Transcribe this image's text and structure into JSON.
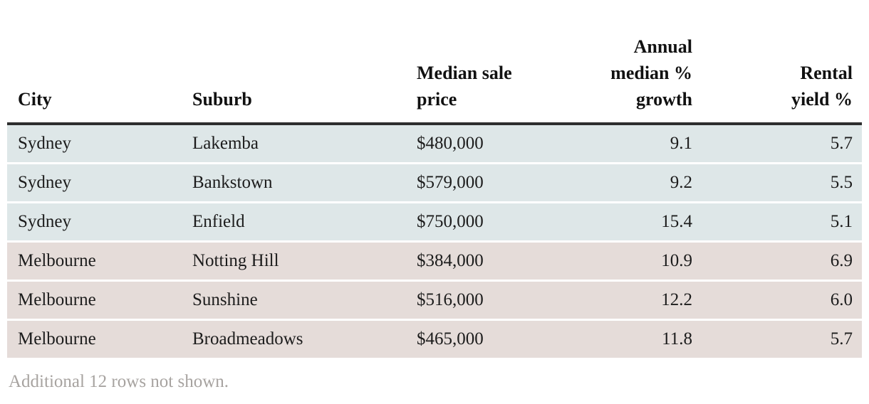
{
  "table": {
    "columns": [
      {
        "label": "City",
        "align": "left"
      },
      {
        "label": "Suburb",
        "align": "left"
      },
      {
        "label": "Median sale\nprice",
        "align": "left"
      },
      {
        "label": "Annual\nmedian %\ngrowth",
        "align": "right"
      },
      {
        "label": "Rental\nyield %",
        "align": "right"
      }
    ],
    "row_groups": {
      "Sydney": "#dee7e8",
      "Melbourne": "#e5dcd9"
    },
    "rows": [
      {
        "city": "Sydney",
        "suburb": "Lakemba",
        "median_sale_price": "$480,000",
        "annual_median_growth": "9.1",
        "rental_yield": "5.7"
      },
      {
        "city": "Sydney",
        "suburb": "Bankstown",
        "median_sale_price": "$579,000",
        "annual_median_growth": "9.2",
        "rental_yield": "5.5"
      },
      {
        "city": "Sydney",
        "suburb": "Enfield",
        "median_sale_price": "$750,000",
        "annual_median_growth": "15.4",
        "rental_yield": "5.1"
      },
      {
        "city": "Melbourne",
        "suburb": "Notting Hill",
        "median_sale_price": "$384,000",
        "annual_median_growth": "10.9",
        "rental_yield": "6.9"
      },
      {
        "city": "Melbourne",
        "suburb": "Sunshine",
        "median_sale_price": "$516,000",
        "annual_median_growth": "12.2",
        "rental_yield": "6.0"
      },
      {
        "city": "Melbourne",
        "suburb": "Broadmeadows",
        "median_sale_price": "$465,000",
        "annual_median_growth": "11.8",
        "rental_yield": "5.7"
      }
    ]
  },
  "footer": {
    "note": "Additional 12 rows not shown."
  },
  "colors": {
    "sydney_row_bg": "#dee7e8",
    "melbourne_row_bg": "#e5dcd9",
    "header_rule": "#2e2e2e",
    "footer_text": "#a7a3a0"
  },
  "chart_data": {
    "type": "table",
    "columns": [
      "City",
      "Suburb",
      "Median sale price",
      "Annual median % growth",
      "Rental yield %"
    ],
    "rows": [
      [
        "Sydney",
        "Lakemba",
        "$480,000",
        9.1,
        5.7
      ],
      [
        "Sydney",
        "Bankstown",
        "$579,000",
        9.2,
        5.5
      ],
      [
        "Sydney",
        "Enfield",
        "$750,000",
        15.4,
        5.1
      ],
      [
        "Melbourne",
        "Notting Hill",
        "$384,000",
        10.9,
        6.9
      ],
      [
        "Melbourne",
        "Sunshine",
        "$516,000",
        12.2,
        6.0
      ],
      [
        "Melbourne",
        "Broadmeadows",
        "$465,000",
        11.8,
        5.7
      ]
    ],
    "note": "Additional 12 rows not shown."
  }
}
